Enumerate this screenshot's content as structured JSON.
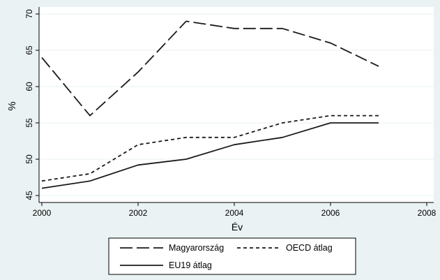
{
  "chart_data": {
    "type": "line",
    "xlabel": "Év",
    "ylabel": "%",
    "xlim": [
      2000,
      2008
    ],
    "ylim": [
      45,
      70
    ],
    "x_ticks": [
      2000,
      2002,
      2004,
      2006,
      2008
    ],
    "y_ticks": [
      45,
      50,
      55,
      60,
      65,
      70
    ],
    "grid": "horizontal",
    "legend_position": "bottom",
    "colors": {
      "background": "#eaf2f3",
      "plot": "#ffffff",
      "grid": "#eaf2f3",
      "line": "#1a1a1a"
    },
    "series": [
      {
        "name": "Magyarország",
        "style": "long-dash",
        "x": [
          2000,
          2001,
          2002,
          2003,
          2004,
          2005,
          2006,
          2007
        ],
        "y": [
          64,
          56,
          62,
          69,
          68,
          68,
          66,
          62.8
        ]
      },
      {
        "name": "OECD átlag",
        "style": "short-dash",
        "x": [
          2000,
          2001,
          2002,
          2003,
          2004,
          2005,
          2006,
          2007
        ],
        "y": [
          47,
          48,
          52,
          53,
          53,
          55,
          56,
          56
        ]
      },
      {
        "name": "EU19 átlag",
        "style": "solid",
        "x": [
          2000,
          2001,
          2002,
          2003,
          2004,
          2005,
          2006,
          2007
        ],
        "y": [
          46,
          47,
          49.2,
          50,
          52,
          53,
          55,
          55
        ]
      }
    ]
  }
}
